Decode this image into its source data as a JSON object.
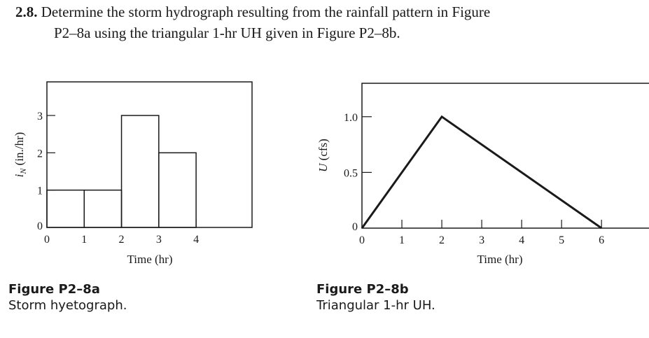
{
  "problem": {
    "number": "2.8.",
    "text_line1": "Determine the storm hydrograph resulting from the rainfall pattern in Figure",
    "text_line2": "P2–8a using the triangular 1-hr UH given in Figure P2–8b."
  },
  "figures": [
    {
      "caption_title": "Figure P2–8a",
      "caption_text": "Storm hyetograph.",
      "ylabel_main": "i",
      "ylabel_sub": "N",
      "ylabel_unit": " (in./hr)",
      "xlabel": "Time (hr)"
    },
    {
      "caption_title": "Figure P2–8b",
      "caption_text": "Triangular 1-hr UH.",
      "ylabel_main": "U",
      "ylabel_unit": " (cfs)",
      "xlabel": "Time (hr)"
    }
  ],
  "chart_data": [
    {
      "type": "bar",
      "xlabel": "Time (hr)",
      "ylabel": "iN (in./hr)",
      "x_ticks": [
        "0",
        "1",
        "2",
        "3",
        "4"
      ],
      "y_ticks": [
        "0",
        "1",
        "2",
        "3"
      ],
      "bins": [
        {
          "start": 0,
          "end": 1,
          "value": 1
        },
        {
          "start": 1,
          "end": 2,
          "value": 1
        },
        {
          "start": 2,
          "end": 3,
          "value": 3
        },
        {
          "start": 3,
          "end": 4,
          "value": 2
        }
      ],
      "xlim": [
        0,
        5.5
      ],
      "ylim": [
        0,
        3.9
      ]
    },
    {
      "type": "line",
      "xlabel": "Time (hr)",
      "ylabel": "U (cfs)",
      "x_ticks": [
        "0",
        "1",
        "2",
        "3",
        "4",
        "5",
        "6"
      ],
      "y_ticks": [
        "0",
        "0.5",
        "1.0"
      ],
      "x": [
        0,
        2,
        6
      ],
      "y": [
        0,
        1.0,
        0
      ],
      "xlim": [
        0,
        7.4
      ],
      "ylim": [
        0,
        1.3
      ]
    }
  ]
}
